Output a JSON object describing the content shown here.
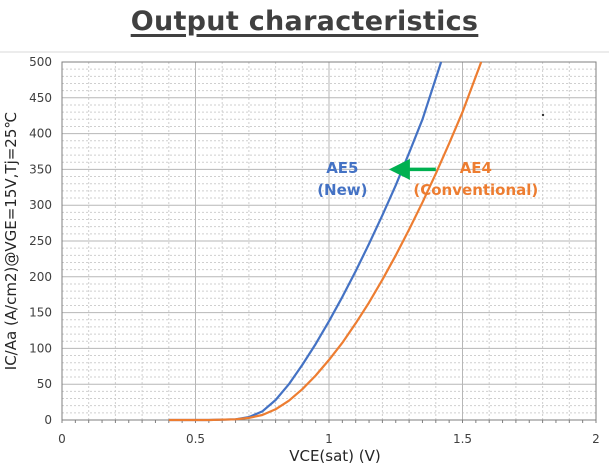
{
  "title": "Output characteristics",
  "chart_data": {
    "type": "line",
    "title": "Output characteristics",
    "xlabel": "VCE(sat) (V)",
    "ylabel": "IC/Aa (A/cm2)@VGE=15V,Tj=25℃",
    "xlim": [
      0,
      2
    ],
    "ylim": [
      0,
      500
    ],
    "x_ticks": [
      0,
      0.5,
      1,
      1.5,
      2
    ],
    "x_tick_labels": [
      "0",
      "0.5",
      "1",
      "1.5",
      "2"
    ],
    "y_ticks": [
      0,
      50,
      100,
      150,
      200,
      250,
      300,
      350,
      400,
      450,
      500
    ],
    "y_tick_labels": [
      "0",
      "50",
      "100",
      "150",
      "200",
      "250",
      "300",
      "350",
      "400",
      "450",
      "500"
    ],
    "grid": true,
    "legend": "none",
    "series": [
      {
        "name": "AE5 (New)",
        "label_lines": [
          "AE5",
          "(New)"
        ],
        "color": "#4472C4",
        "x": [
          0.4,
          0.55,
          0.65,
          0.7,
          0.75,
          0.8,
          0.85,
          0.9,
          0.95,
          1.0,
          1.05,
          1.1,
          1.15,
          1.2,
          1.25,
          1.3,
          1.35,
          1.42
        ],
        "y": [
          0,
          0,
          1,
          4,
          12,
          28,
          50,
          77,
          106,
          138,
          172,
          208,
          246,
          286,
          328,
          373,
          420,
          500
        ]
      },
      {
        "name": "AE4 (Conventional)",
        "label_lines": [
          "AE4",
          "(Conventional)"
        ],
        "color": "#ED7D31",
        "x": [
          0.4,
          0.55,
          0.65,
          0.7,
          0.75,
          0.8,
          0.85,
          0.9,
          0.95,
          1.0,
          1.05,
          1.1,
          1.15,
          1.2,
          1.25,
          1.3,
          1.35,
          1.4,
          1.45,
          1.5,
          1.57
        ],
        "y": [
          0,
          0,
          1,
          3,
          7,
          15,
          27,
          43,
          62,
          84,
          108,
          135,
          164,
          196,
          230,
          266,
          304,
          344,
          386,
          430,
          500
        ]
      }
    ],
    "annotations": [
      {
        "type": "arrow",
        "color": "#00B050",
        "from": [
          1.4,
          350
        ],
        "to": [
          1.26,
          350
        ]
      }
    ]
  }
}
